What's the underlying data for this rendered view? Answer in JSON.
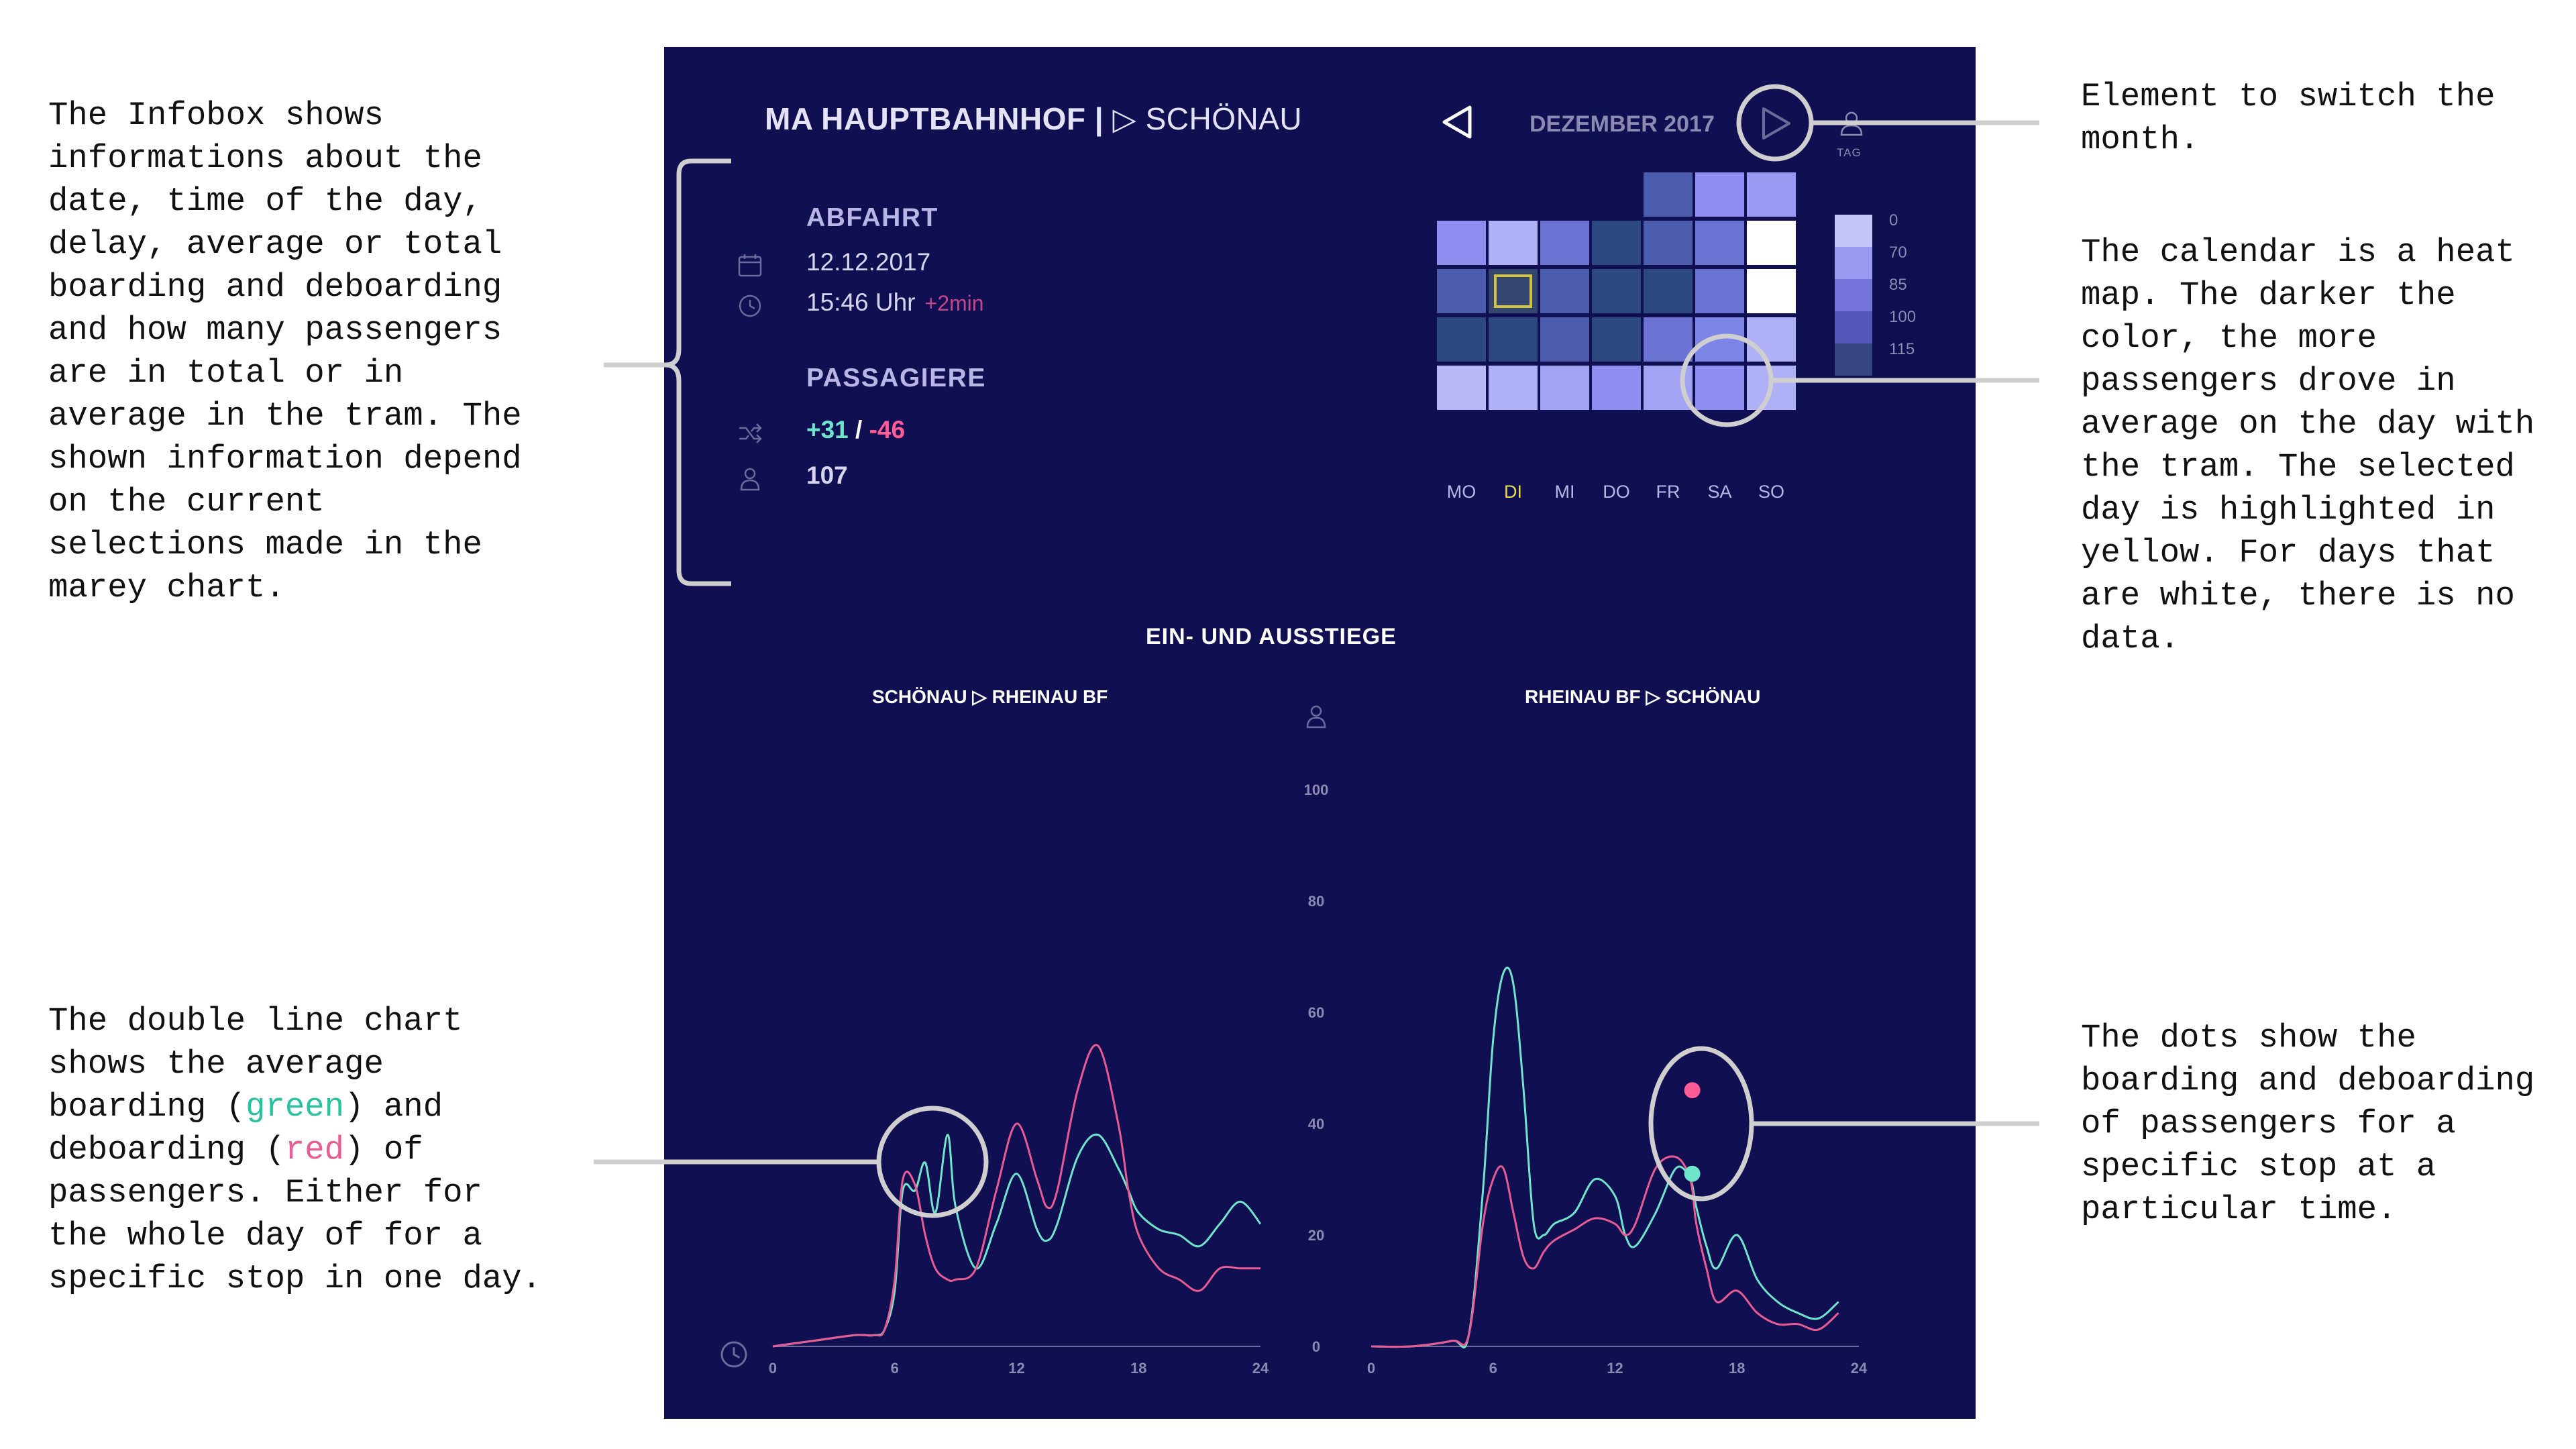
{
  "annotations": {
    "infobox": "The Infobox shows\ninformations about the\ndate, time of the day,\ndelay, average or total\nboarding and deboarding\nand how many passengers\nare in total or in\naverage in the tram. The\nshown information depend\non the current\nselections made in the\nmarey chart.",
    "month_switch": "Element to switch the\nmonth.",
    "calendar": "The calendar is a heat\nmap. The darker the\ncolor, the more\npassengers drove in\naverage on the day with\nthe tram. The selected\nday is highlighted in\nyellow.  For days that\nare white, there is no\ndata.",
    "line_chart_1": "The double line chart\nshows the average\nboarding (",
    "line_chart_green": "green",
    "line_chart_2": ") and\ndeboarding (",
    "line_chart_red": "red",
    "line_chart_3": ") of\npassengers. Either for\nthe whole day of for a\nspecific stop in one day.",
    "dots": "The dots show the\nboarding and deboarding\nof passengers for a\nspecific stop at a\nparticular time."
  },
  "header": {
    "title_bold": "MA HAUPTBAHNHOF |",
    "title_arrow": " ▷ ",
    "title_dest": "SCHÖNAU"
  },
  "calendar": {
    "month": "DEZEMBER 2017",
    "legend_title": "TAG",
    "legend": [
      {
        "label": "0",
        "color": "#c4c3f6"
      },
      {
        "label": "70",
        "color": "#9b9af0"
      },
      {
        "label": "85",
        "color": "#7575dc"
      },
      {
        "label": "100",
        "color": "#5456b8"
      },
      {
        "label": "115",
        "color": "#34457f"
      }
    ],
    "weekdays": [
      "MO",
      "DI",
      "MI",
      "DO",
      "FR",
      "SA",
      "SO"
    ],
    "selected_weekday": 1,
    "rows": [
      [
        null,
        null,
        null,
        null,
        "#4a5cab",
        "#8f8ef0",
        "#9a9af2"
      ],
      [
        "#8f8ef0",
        "#b0b0f7",
        "#6a72d2",
        "#2c4880",
        "#4a5cab",
        "#6a72d2",
        "#ffffff"
      ],
      [
        "#4a5cab",
        "#33466f",
        "#4a5cab",
        "#2c4880",
        "#2c4880",
        "#6a72d2",
        "#ffffff"
      ],
      [
        "#2c4880",
        "#2c4880",
        "#4a5cab",
        "#2c4880",
        "#6a72d2",
        "#7c84e6",
        "#b0b0f7"
      ],
      [
        "#b8b8f7",
        "#b0b0f7",
        "#a3a3f4",
        "#8f8ef0",
        "#a3a3f4",
        "#8f8ef0",
        "#b0b0f7"
      ]
    ],
    "selected_cell": [
      2,
      1
    ]
  },
  "infobox": {
    "departure_heading": "ABFAHRT",
    "date": "12.12.2017",
    "time": "15:46 Uhr",
    "delay": "+2min",
    "passengers_heading": "PASSAGIERE",
    "boarding": "+31",
    "separator": "/",
    "deboarding": "-46",
    "total": "107"
  },
  "charts": {
    "title": "EIN- UND AUSSTIEGE",
    "left_title": "SCHÖNAU ▷ RHEINAU BF",
    "right_title": "RHEINAU BF ▷ SCHÖNAU",
    "y_ticks": [
      "100",
      "80",
      "60",
      "40",
      "20",
      "0"
    ],
    "x_ticks": [
      "0",
      "6",
      "12",
      "18",
      "24"
    ]
  },
  "chart_data": [
    {
      "type": "line",
      "title": "SCHÖNAU ▷ RHEINAU BF",
      "xlim": [
        0,
        24
      ],
      "ylim": [
        0,
        100
      ],
      "series": [
        {
          "color": "#6fe6cb",
          "x": [
            0,
            2,
            4,
            5,
            5.5,
            6,
            6.4,
            7,
            7.5,
            8,
            8.6,
            9,
            10,
            11,
            12,
            13,
            13.5,
            14,
            15,
            16,
            17,
            17.5,
            18,
            19,
            20,
            21,
            22,
            23,
            24
          ],
          "y": [
            0,
            1,
            2,
            2,
            3,
            10,
            28,
            28,
            33,
            24,
            38,
            25,
            14,
            22,
            31,
            21,
            19,
            22,
            34,
            38,
            32,
            28,
            24,
            21,
            20,
            18,
            22,
            26,
            22
          ]
        },
        {
          "color": "#e95b93",
          "x": [
            0,
            2,
            4,
            5,
            5.5,
            6,
            6.4,
            7,
            7.5,
            8,
            8.6,
            9,
            10,
            11,
            12,
            13,
            13.5,
            14,
            15,
            16,
            17,
            17.5,
            18,
            19,
            20,
            21,
            22,
            23,
            24
          ],
          "y": [
            0,
            1,
            2,
            2,
            3,
            12,
            30,
            29,
            20,
            14,
            12,
            12,
            14,
            28,
            40,
            30,
            25,
            28,
            46,
            54,
            40,
            28,
            20,
            14,
            12,
            10,
            14,
            14,
            14
          ]
        }
      ]
    },
    {
      "type": "line",
      "title": "RHEINAU BF ▷ SCHÖNAU",
      "xlim": [
        0,
        24
      ],
      "ylim": [
        0,
        100
      ],
      "series": [
        {
          "color": "#6fe6cb",
          "x": [
            0,
            2,
            4,
            4.8,
            5.5,
            6,
            6.5,
            7,
            7.5,
            8,
            8.5,
            9,
            10,
            11,
            12,
            12.5,
            13,
            14,
            15,
            15.7,
            16,
            16.5,
            17,
            18,
            19,
            20,
            21,
            22,
            23
          ],
          "y": [
            0,
            0,
            1,
            2,
            28,
            55,
            67,
            65,
            46,
            22,
            20,
            22,
            24,
            30,
            27,
            20,
            18,
            24,
            32,
            30,
            25,
            18,
            14,
            20,
            12,
            8,
            6,
            5,
            8
          ]
        },
        {
          "color": "#e95b93",
          "x": [
            0,
            2,
            4,
            4.8,
            5.5,
            6,
            6.5,
            7,
            7.5,
            8,
            8.5,
            9,
            10,
            11,
            12,
            12.5,
            13,
            14,
            15,
            15.7,
            16,
            16.5,
            17,
            18,
            19,
            20,
            21,
            22,
            23
          ],
          "y": [
            0,
            0,
            1,
            2,
            22,
            30,
            32,
            24,
            16,
            14,
            17,
            19,
            21,
            23,
            22,
            20,
            22,
            32,
            34,
            30,
            22,
            14,
            8,
            10,
            6,
            4,
            4,
            3,
            6
          ]
        }
      ]
    },
    {
      "type": "scatter",
      "title": "stop dots",
      "points": [
        {
          "x": 15.8,
          "y": 46,
          "color": "#ff5b95"
        },
        {
          "x": 15.8,
          "y": 31,
          "color": "#6fe6cb"
        }
      ]
    }
  ]
}
